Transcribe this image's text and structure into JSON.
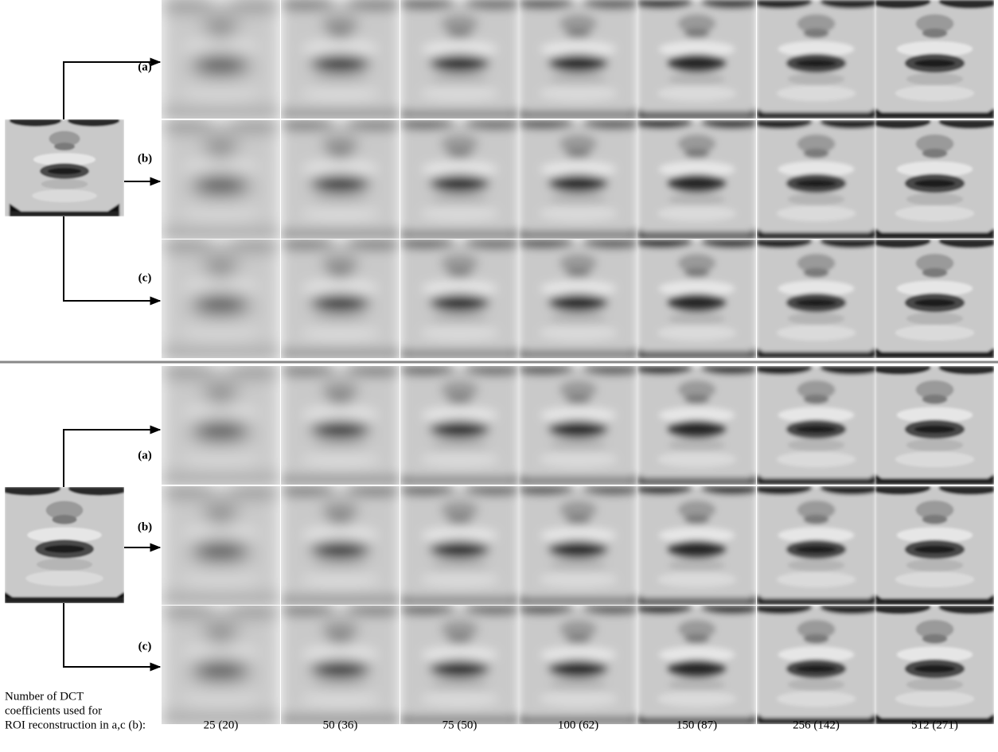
{
  "panels": [
    {
      "rows": [
        "(a)",
        "(b)",
        "(c)"
      ]
    },
    {
      "rows": [
        "(a)",
        "(b)",
        "(c)"
      ]
    }
  ],
  "caption": {
    "lines": [
      "Number of DCT",
      "coefficients used for",
      "ROI reconstruction in a,c (b):"
    ]
  },
  "columns": [
    "25 (20)",
    "50 (36)",
    "75 (50)",
    "100 (62)",
    "150 (87)",
    "256 (142)",
    "512 (271)"
  ]
}
